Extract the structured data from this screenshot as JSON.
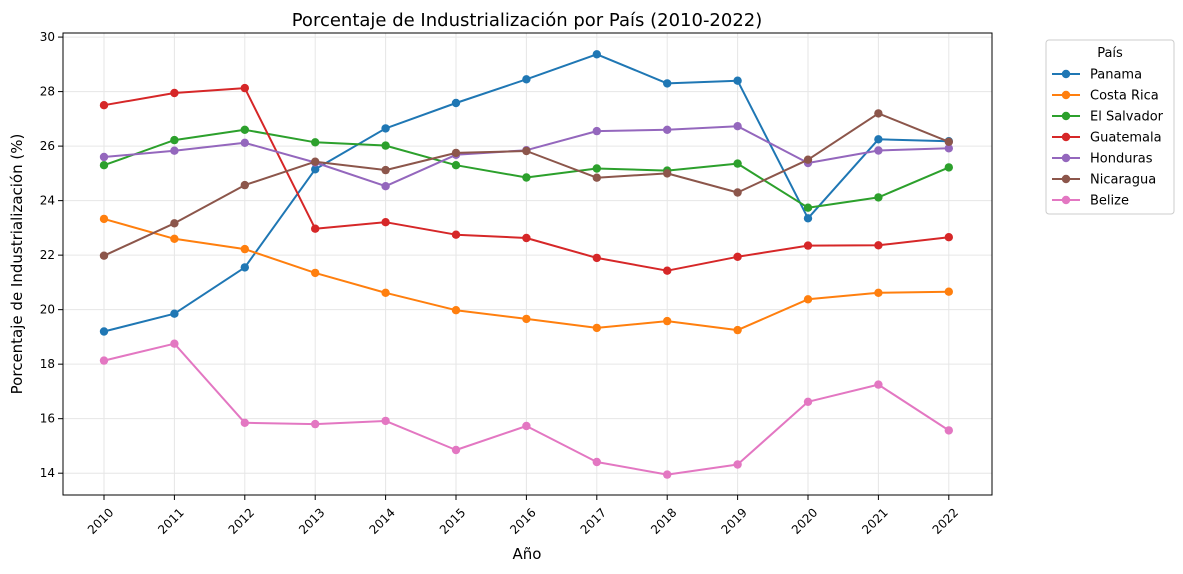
{
  "chart_data": {
    "type": "line",
    "title": "Porcentaje de Industrialización por País (2010-2022)",
    "xlabel": "Año",
    "ylabel": "Porcentaje de Industrialización (%)",
    "categories": [
      "2010",
      "2011",
      "2012",
      "2013",
      "2014",
      "2015",
      "2016",
      "2017",
      "2018",
      "2019",
      "2020",
      "2021",
      "2022"
    ],
    "ylim": [
      13.2,
      30.15
    ],
    "yticks": [
      14,
      16,
      18,
      20,
      22,
      24,
      26,
      28,
      30
    ],
    "grid": true,
    "legend_title": "País",
    "legend_position": "outside-top-right",
    "series": [
      {
        "name": "Panama",
        "color": "#1f77b4",
        "values": [
          19.2,
          19.85,
          21.55,
          25.15,
          26.65,
          27.58,
          28.45,
          29.37,
          28.3,
          28.4,
          23.35,
          26.25,
          26.18
        ]
      },
      {
        "name": "Costa Rica",
        "color": "#ff7f0e",
        "values": [
          23.33,
          22.6,
          22.22,
          21.35,
          20.62,
          19.98,
          19.66,
          19.33,
          19.58,
          19.25,
          20.38,
          20.62,
          20.66
        ]
      },
      {
        "name": "El Salvador",
        "color": "#2ca02c",
        "values": [
          25.3,
          26.22,
          26.6,
          26.14,
          26.02,
          25.3,
          24.85,
          25.18,
          25.1,
          25.36,
          23.74,
          24.12,
          25.22
        ]
      },
      {
        "name": "Guatemala",
        "color": "#d62728",
        "values": [
          27.5,
          27.95,
          28.13,
          22.97,
          23.21,
          22.75,
          22.63,
          21.9,
          21.43,
          21.94,
          22.35,
          22.36,
          22.66
        ]
      },
      {
        "name": "Honduras",
        "color": "#9467bd",
        "values": [
          25.6,
          25.83,
          26.12,
          25.4,
          24.53,
          25.68,
          25.85,
          26.55,
          26.6,
          26.73,
          25.38,
          25.84,
          25.92
        ]
      },
      {
        "name": "Nicaragua",
        "color": "#8c564b",
        "values": [
          21.98,
          23.17,
          24.57,
          25.43,
          25.12,
          25.75,
          25.82,
          24.84,
          25.0,
          24.3,
          25.5,
          27.2,
          26.16
        ]
      },
      {
        "name": "Belize",
        "color": "#e377c2",
        "values": [
          18.13,
          18.75,
          15.85,
          15.8,
          15.92,
          14.85,
          15.73,
          14.41,
          13.95,
          14.32,
          16.62,
          17.25,
          15.57
        ]
      }
    ]
  }
}
